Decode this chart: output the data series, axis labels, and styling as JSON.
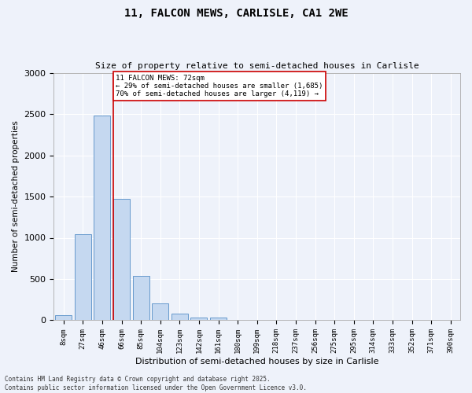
{
  "title_line1": "11, FALCON MEWS, CARLISLE, CA1 2WE",
  "title_line2": "Size of property relative to semi-detached houses in Carlisle",
  "xlabel": "Distribution of semi-detached houses by size in Carlisle",
  "ylabel": "Number of semi-detached properties",
  "categories": [
    "8sqm",
    "27sqm",
    "46sqm",
    "66sqm",
    "85sqm",
    "104sqm",
    "123sqm",
    "142sqm",
    "161sqm",
    "180sqm",
    "199sqm",
    "218sqm",
    "237sqm",
    "256sqm",
    "275sqm",
    "295sqm",
    "314sqm",
    "333sqm",
    "352sqm",
    "371sqm",
    "390sqm"
  ],
  "values": [
    60,
    1045,
    2480,
    1470,
    540,
    200,
    85,
    35,
    30,
    0,
    0,
    0,
    0,
    0,
    0,
    0,
    0,
    0,
    0,
    0,
    0
  ],
  "bar_color": "#c5d8f0",
  "bar_edge_color": "#6699cc",
  "background_color": "#eef2fa",
  "figure_bg": "#eef2fa",
  "grid_color": "#ffffff",
  "property_label": "11 FALCON MEWS: 72sqm",
  "pct_smaller": 29,
  "count_smaller": 1685,
  "pct_larger": 70,
  "count_larger": 4119,
  "vline_color": "#cc0000",
  "annotation_box_color": "#cc0000",
  "ylim": [
    0,
    3000
  ],
  "yticks": [
    0,
    500,
    1000,
    1500,
    2000,
    2500,
    3000
  ],
  "vline_bin_index": 3,
  "footnote_line1": "Contains HM Land Registry data © Crown copyright and database right 2025.",
  "footnote_line2": "Contains public sector information licensed under the Open Government Licence v3.0."
}
